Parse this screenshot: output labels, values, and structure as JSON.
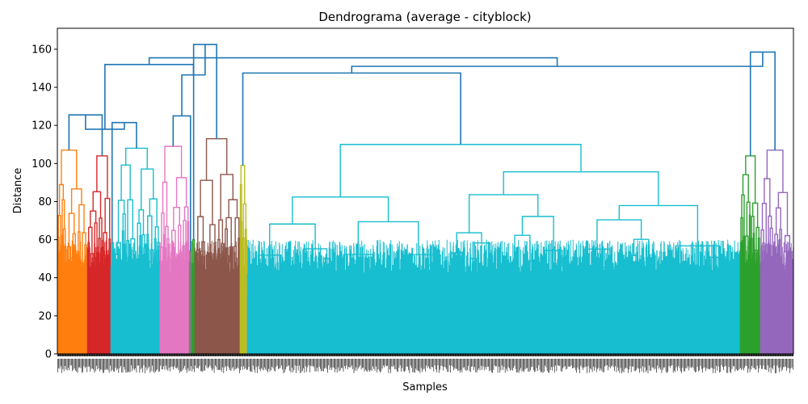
{
  "chart_data": {
    "type": "dendrogram",
    "title": "Dendrograma (average - cityblock)",
    "xlabel": "Samples",
    "ylabel": "Distance",
    "ylim": [
      0,
      171
    ],
    "yticks": [
      0,
      20,
      40,
      60,
      80,
      100,
      120,
      140,
      160
    ],
    "grid": false,
    "above_threshold_color": "#1f77b4",
    "clusters": [
      {
        "name": "orange",
        "color": "#ff7f0e",
        "x_range": [
          0,
          37
        ],
        "top_height": 107
      },
      {
        "name": "red",
        "color": "#d62728",
        "x_range": [
          37,
          66
        ],
        "top_height": 104
      },
      {
        "name": "cyan-small",
        "color": "#17becf",
        "x_range": [
          66,
          69
        ],
        "top_height": 58
      },
      {
        "name": "cyan-left",
        "color": "#17becf",
        "x_range": [
          69,
          127
        ],
        "top_height": 108
      },
      {
        "name": "pink",
        "color": "#e377c2",
        "x_range": [
          127,
          163
        ],
        "top_height": 109
      },
      {
        "name": "gray",
        "color": "#7f7f7f",
        "x_range": [
          163,
          166
        ],
        "top_height": 54
      },
      {
        "name": "green-thin",
        "color": "#2ca02c",
        "x_range": [
          166,
          170
        ],
        "top_height": 60
      },
      {
        "name": "brown",
        "color": "#8c564b",
        "x_range": [
          170,
          226
        ],
        "top_height": 113
      },
      {
        "name": "olive",
        "color": "#bcbd22",
        "x_range": [
          226,
          235
        ],
        "top_height": 99
      },
      {
        "name": "cyan-main",
        "color": "#17becf",
        "x_range": [
          235,
          845
        ],
        "top_height": 110
      },
      {
        "name": "green",
        "color": "#2ca02c",
        "x_range": [
          845,
          870
        ],
        "top_height": 104
      },
      {
        "name": "purple",
        "color": "#9467bd",
        "x_range": [
          870,
          911
        ],
        "top_height": 107
      }
    ],
    "top_links": [
      {
        "left": 0,
        "right": 1,
        "height": 125.5
      },
      {
        "left": 2,
        "right": 3,
        "height": 121.5
      },
      {
        "left": 4,
        "right": 5,
        "height": 125.0
      },
      {
        "left": 6,
        "right": 7,
        "height": 162.5
      },
      {
        "left": 8,
        "right": 9,
        "height": 147.5
      },
      {
        "left": 10,
        "right": 11,
        "height": 158.5
      },
      {
        "left": 12,
        "right": 13,
        "height": 118.0
      },
      {
        "left": 14,
        "right": 15,
        "height": 146.5
      },
      {
        "left": 16,
        "right": 17,
        "height": 151.0
      },
      {
        "left": 18,
        "right": 19,
        "height": 152.0
      },
      {
        "left": 20,
        "right": 21,
        "height": 155.5
      }
    ]
  }
}
